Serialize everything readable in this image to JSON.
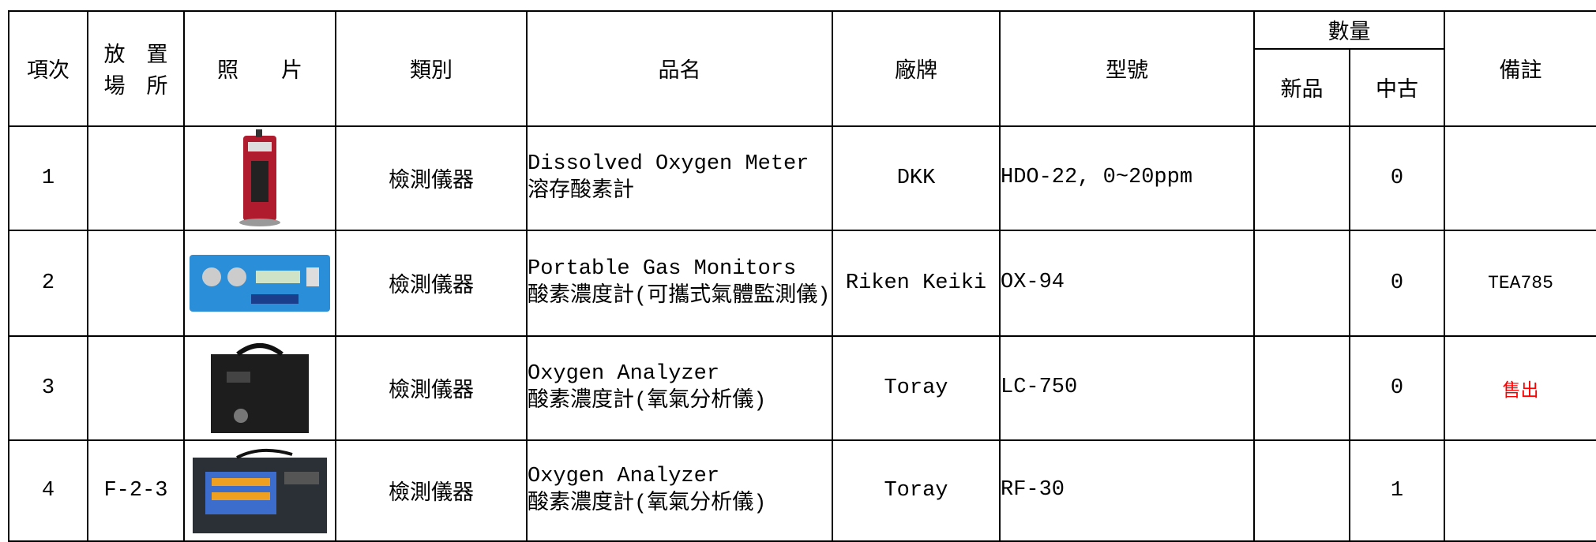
{
  "header": {
    "index": "項次",
    "location": [
      "放　置",
      "場　所"
    ],
    "photo": "照　　片",
    "category": "類別",
    "name": "品名",
    "brand": "廠牌",
    "model": "型號",
    "quantity": "數量",
    "new": "新品",
    "used": "中古",
    "note": "備註"
  },
  "rows": [
    {
      "index": 1,
      "location": null,
      "category": "檢測儀器",
      "name_en": "Dissolved Oxygen Meter",
      "name_zh": "溶存酸素計",
      "brand": "DKK",
      "model": "HDO-22, 0~20ppm",
      "new": null,
      "used": 0,
      "note": null
    },
    {
      "index": 2,
      "location": null,
      "category": "檢測儀器",
      "name_en": "Portable Gas Monitors",
      "name_zh": "酸素濃度計(可攜式氣體監測儀)",
      "brand": "Riken Keiki",
      "model": "OX-94",
      "new": null,
      "used": 0,
      "note": "TEA785"
    },
    {
      "index": 3,
      "location": null,
      "category": "檢測儀器",
      "name_en": "Oxygen Analyzer",
      "name_zh": "酸素濃度計(氧氣分析儀)",
      "brand": "Toray",
      "model": "LC-750",
      "new": null,
      "used": 0,
      "note": "售出",
      "note_color": "#ff0000"
    },
    {
      "index": 4,
      "location": "F-2-3",
      "category": "檢測儀器",
      "name_en": "Oxygen Analyzer",
      "name_zh": "酸素濃度計(氧氣分析儀)",
      "brand": "Toray",
      "model": "RF-30",
      "new": null,
      "used": 1,
      "note": null
    }
  ]
}
